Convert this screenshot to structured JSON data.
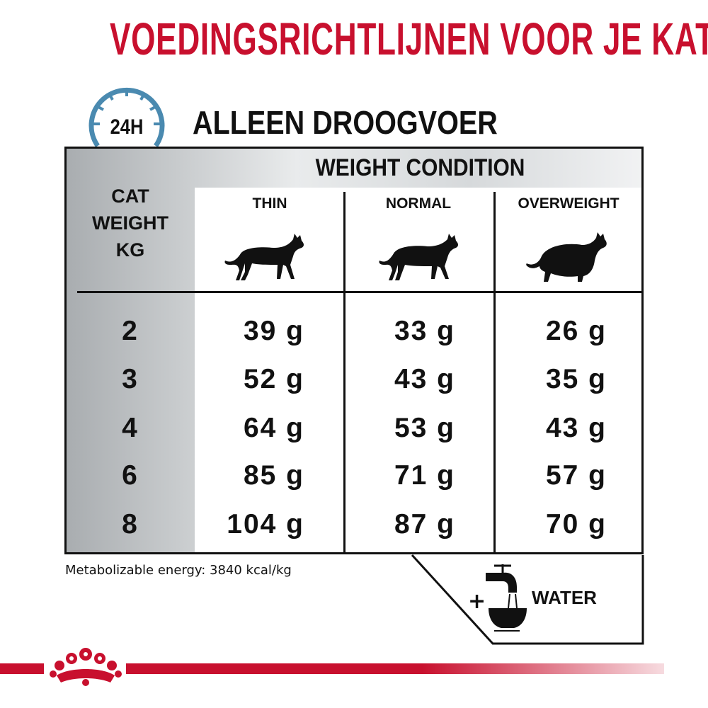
{
  "title": "VOEDINGSRICHTLIJNEN VOOR JE KAT",
  "badge": {
    "label": "24H",
    "icon": "clock-icon",
    "color": "#4a8ab0"
  },
  "subtitle": "ALLEEN DROOGVOER",
  "table": {
    "group_header": "WEIGHT CONDITION",
    "row_header": [
      "CAT",
      "WEIGHT",
      "KG"
    ],
    "columns": [
      {
        "label": "THIN",
        "icon": "thin-cat-icon"
      },
      {
        "label": "NORMAL",
        "icon": "normal-cat-icon"
      },
      {
        "label": "OVERWEIGHT",
        "icon": "overweight-cat-icon"
      }
    ],
    "rows": [
      {
        "weight": "2",
        "values": [
          "39 g",
          "33 g",
          "26 g"
        ]
      },
      {
        "weight": "3",
        "values": [
          "52 g",
          "43 g",
          "35 g"
        ]
      },
      {
        "weight": "4",
        "values": [
          "64 g",
          "53 g",
          "43 g"
        ]
      },
      {
        "weight": "6",
        "values": [
          "85 g",
          "71 g",
          "57 g"
        ]
      },
      {
        "weight": "8",
        "values": [
          "104 g",
          "87 g",
          "70 g"
        ]
      }
    ]
  },
  "energy": "Metabolizable energy: 3840 kcal/kg",
  "water": {
    "plus": "+",
    "label": "WATER",
    "icon": "water-tap-bowl-icon"
  },
  "colors": {
    "brand_red": "#c8102e",
    "text": "#111111"
  }
}
